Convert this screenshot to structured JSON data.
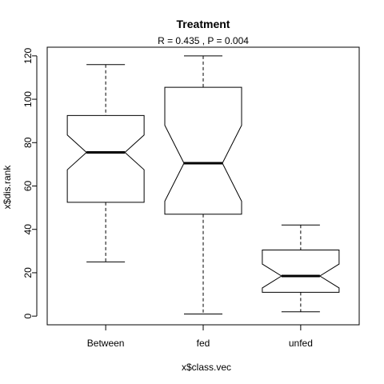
{
  "chart_data": {
    "type": "box",
    "title": "Treatment",
    "subtitle": "R =  0.435 ,  P =  0.004",
    "xlabel": "x$class.vec",
    "ylabel": "x$dis.rank",
    "ylim": [
      -4,
      124
    ],
    "y_ticks": [
      0,
      20,
      40,
      60,
      80,
      100,
      120
    ],
    "notched": true,
    "categories": [
      "Between",
      "fed",
      "unfed"
    ],
    "boxes": [
      {
        "name": "Between",
        "whisker_low": 25,
        "q1": 52.5,
        "median": 75.5,
        "q3": 92.5,
        "whisker_high": 116,
        "notch_low": 67.5,
        "notch_high": 83.5
      },
      {
        "name": "fed",
        "whisker_low": 1,
        "q1": 47,
        "median": 70.5,
        "q3": 105.5,
        "whisker_high": 120,
        "notch_low": 53,
        "notch_high": 88
      },
      {
        "name": "unfed",
        "whisker_low": 2,
        "q1": 11,
        "median": 18.5,
        "q3": 30.5,
        "whisker_high": 42,
        "notch_low": 13,
        "notch_high": 24
      }
    ]
  }
}
